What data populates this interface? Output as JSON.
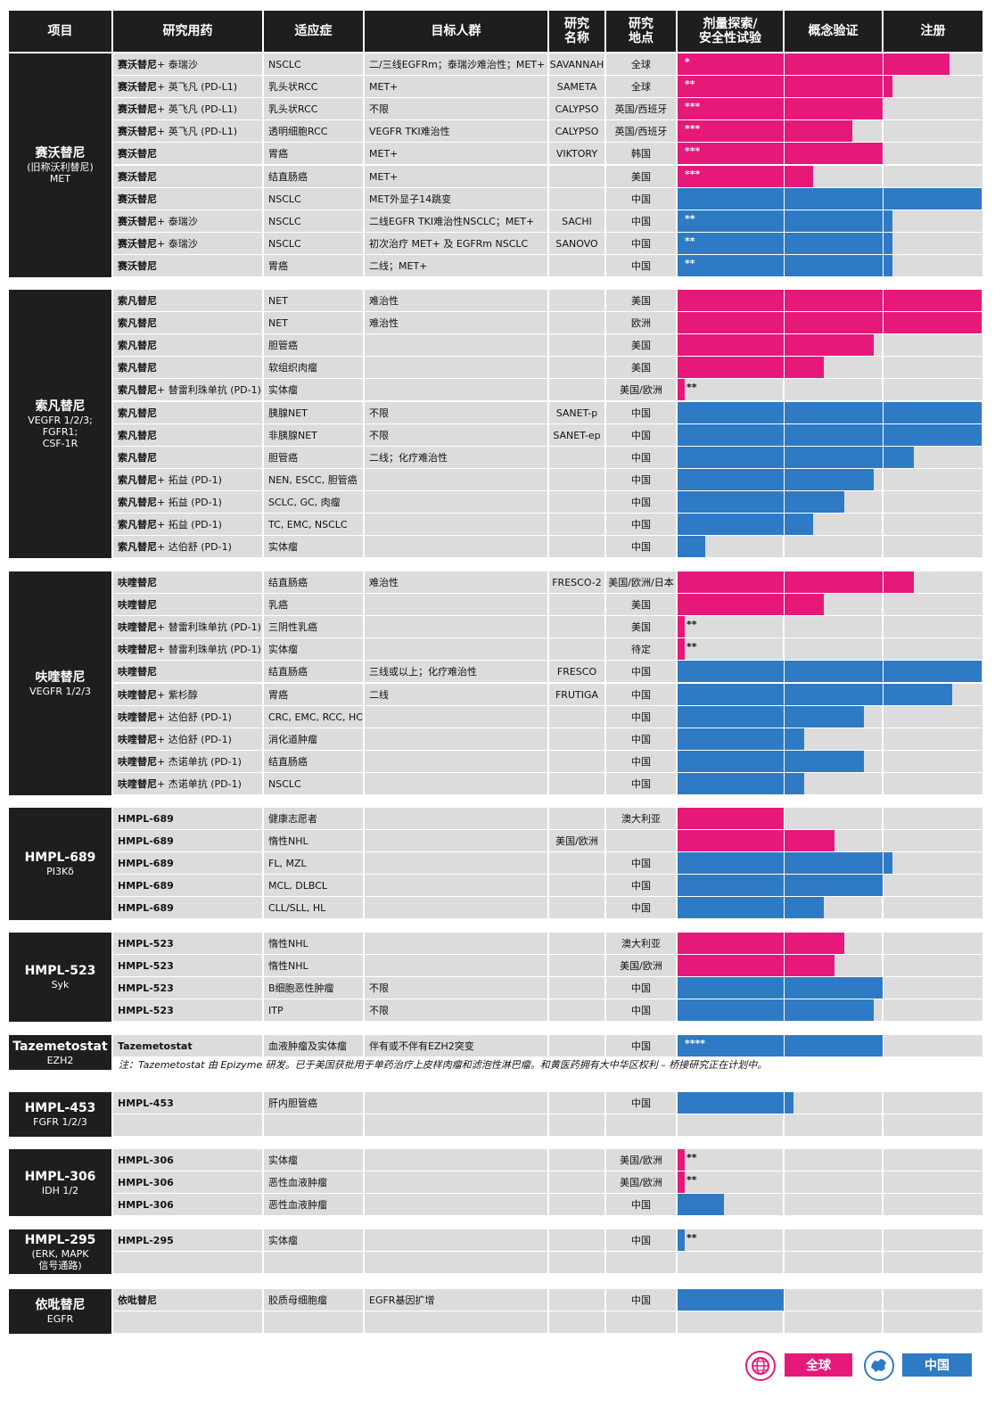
{
  "header": {
    "columns": [
      "项目",
      "研究用药",
      "适应症",
      "目标人群",
      "研究\n名称",
      "研究\n地点",
      "剂量探索/\n安全性试验",
      "概念验证",
      "注册"
    ]
  },
  "legend": {
    "global": "全球",
    "china": "中国",
    "global_color": "#e6197a",
    "china_color": "#2f7ac4",
    "global_icon": "globe-icon",
    "china_icon": "china-map-icon"
  },
  "groups": [
    {
      "name": "赛沃替尼",
      "target": "(旧称沃利替尼)\nMET",
      "rows": [
        {
          "drug": "赛沃替尼",
          "combo": " + 泰瑞沙",
          "ind": "NSCLC",
          "pop": "二/三线EGFRm；泰瑞沙难治性；MET+",
          "study": "SAVANNAH",
          "loc": "全球",
          "region": "global",
          "progress": 0.894,
          "stars": "*"
        },
        {
          "drug": "赛沃替尼",
          "combo": " + 英飞凡 (PD-L1)",
          "ind": "乳头状RCC",
          "pop": "MET+",
          "study": "SAMETA",
          "loc": "全球",
          "region": "global",
          "progress": 0.706,
          "stars": "**"
        },
        {
          "drug": "赛沃替尼",
          "combo": " + 英飞凡 (PD-L1)",
          "ind": "乳头状RCC",
          "pop": "不限",
          "study": "CALYPSO",
          "loc": "英国/西班牙",
          "region": "global",
          "progress": 0.676,
          "stars": "***"
        },
        {
          "drug": "赛沃替尼",
          "combo": " + 英飞凡 (PD-L1)",
          "ind": "透明细胞RCC",
          "pop": "VEGFR TKI难治性",
          "study": "CALYPSO",
          "loc": "英国/西班牙",
          "region": "global",
          "progress": 0.576,
          "stars": "***"
        },
        {
          "drug": "赛沃替尼",
          "combo": "",
          "ind": "胃癌",
          "pop": "MET+",
          "study": "VIKTORY",
          "loc": "韩国",
          "region": "global",
          "progress": 0.676,
          "stars": "***"
        },
        {
          "drug": "赛沃替尼",
          "combo": "",
          "ind": "结直肠癌",
          "pop": "MET+",
          "study": "",
          "loc": "美国",
          "region": "global",
          "progress": 0.447,
          "stars": "***"
        },
        {
          "drug": "赛沃替尼",
          "combo": "",
          "ind": "NSCLC",
          "pop": "MET外显子14跳变",
          "study": "",
          "loc": "中国",
          "region": "china",
          "progress": 1.0,
          "stars": ""
        },
        {
          "drug": "赛沃替尼",
          "combo": " + 泰瑞沙",
          "ind": "NSCLC",
          "pop": "二线EGFR TKI难治性NSCLC；MET+",
          "study": "SACHI",
          "loc": "中国",
          "region": "china",
          "progress": 0.706,
          "stars": "**"
        },
        {
          "drug": "赛沃替尼",
          "combo": " + 泰瑞沙",
          "ind": "NSCLC",
          "pop": "初次治疗 MET+ 及 EGFRm NSCLC",
          "study": "SANOVO",
          "loc": "中国",
          "region": "china",
          "progress": 0.706,
          "stars": "**"
        },
        {
          "drug": "赛沃替尼",
          "combo": "",
          "ind": "胃癌",
          "pop": "二线；MET+",
          "study": "",
          "loc": "中国",
          "region": "china",
          "progress": 0.706,
          "stars": "**"
        }
      ]
    },
    {
      "name": "索凡替尼",
      "target": "VEGFR 1/2/3;\nFGFR1;\nCSF-1R",
      "rows": [
        {
          "drug": "索凡替尼",
          "combo": "",
          "ind": "NET",
          "pop": "难治性",
          "study": "",
          "loc": "美国",
          "region": "global",
          "progress": 1.0,
          "stars": ""
        },
        {
          "drug": "索凡替尼",
          "combo": "",
          "ind": "NET",
          "pop": "难治性",
          "study": "",
          "loc": "欧洲",
          "region": "global",
          "progress": 1.0,
          "stars": ""
        },
        {
          "drug": "索凡替尼",
          "combo": "",
          "ind": "胆管癌",
          "pop": "",
          "study": "",
          "loc": "美国",
          "region": "global",
          "progress": 0.644,
          "stars": ""
        },
        {
          "drug": "索凡替尼",
          "combo": "",
          "ind": "软组织肉瘤",
          "pop": "",
          "study": "",
          "loc": "美国",
          "region": "global",
          "progress": 0.482,
          "stars": ""
        },
        {
          "drug": "索凡替尼",
          "combo": " + 替雷利珠单抗 (PD-1)",
          "ind": "实体瘤",
          "pop": "",
          "study": "",
          "loc": "美国/欧洲",
          "region": "global",
          "progress": 0.024,
          "stars": "**"
        },
        {
          "drug": "索凡替尼",
          "combo": "",
          "ind": "胰腺NET",
          "pop": "不限",
          "study": "SANET-p",
          "loc": "中国",
          "region": "china",
          "progress": 1.0,
          "stars": ""
        },
        {
          "drug": "索凡替尼",
          "combo": "",
          "ind": "非胰腺NET",
          "pop": "不限",
          "study": "SANET-ep",
          "loc": "中国",
          "region": "china",
          "progress": 1.0,
          "stars": ""
        },
        {
          "drug": "索凡替尼",
          "combo": "",
          "ind": "胆管癌",
          "pop": "二线；化疗难治性",
          "study": "",
          "loc": "中国",
          "region": "china",
          "progress": 0.776,
          "stars": ""
        },
        {
          "drug": "索凡替尼",
          "combo": " + 拓益 (PD-1)",
          "ind": "NEN, ESCC, 胆管癌",
          "pop": "",
          "study": "",
          "loc": "中国",
          "region": "china",
          "progress": 0.644,
          "stars": ""
        },
        {
          "drug": "索凡替尼",
          "combo": " + 拓益 (PD-1)",
          "ind": "SCLC, GC, 肉瘤",
          "pop": "",
          "study": "",
          "loc": "中国",
          "region": "china",
          "progress": 0.547,
          "stars": ""
        },
        {
          "drug": "索凡替尼",
          "combo": " + 拓益 (PD-1)",
          "ind": "TC, EMC, NSCLC",
          "pop": "",
          "study": "",
          "loc": "中国",
          "region": "china",
          "progress": 0.447,
          "stars": ""
        },
        {
          "drug": "索凡替尼",
          "combo": " + 达伯舒 (PD-1)",
          "ind": "实体瘤",
          "pop": "",
          "study": "",
          "loc": "中国",
          "region": "china",
          "progress": 0.091,
          "stars": ""
        }
      ]
    },
    {
      "name": "呋喹替尼",
      "target": "VEGFR 1/2/3",
      "rows": [
        {
          "drug": "呋喹替尼",
          "combo": "",
          "ind": "结直肠癌",
          "pop": "难治性",
          "study": "FRESCO-2",
          "loc": "美国/欧洲/日本",
          "region": "global",
          "progress": 0.776,
          "stars": ""
        },
        {
          "drug": "呋喹替尼",
          "combo": "",
          "ind": "乳癌",
          "pop": "",
          "study": "",
          "loc": "美国",
          "region": "global",
          "progress": 0.482,
          "stars": ""
        },
        {
          "drug": "呋喹替尼",
          "combo": " + 替雷利珠单抗 (PD-1)",
          "ind": "三阴性乳癌",
          "pop": "",
          "study": "",
          "loc": "美国",
          "region": "global",
          "progress": 0.024,
          "stars": "**"
        },
        {
          "drug": "呋喹替尼",
          "combo": " + 替雷利珠单抗 (PD-1)",
          "ind": "实体瘤",
          "pop": "",
          "study": "",
          "loc": "待定",
          "region": "global",
          "progress": 0.024,
          "stars": "**"
        },
        {
          "drug": "呋喹替尼",
          "combo": "",
          "ind": "结直肠癌",
          "pop": "三线或以上；化疗难治性",
          "study": "FRESCO",
          "loc": "中国",
          "region": "china",
          "progress": 1.0,
          "stars": ""
        },
        {
          "drug": "呋喹替尼",
          "combo": " + 紫杉醇",
          "ind": "胃癌",
          "pop": "二线",
          "study": "FRUTIGA",
          "loc": "中国",
          "region": "china",
          "progress": 0.903,
          "stars": ""
        },
        {
          "drug": "呋喹替尼",
          "combo": " + 达伯舒 (PD-1)",
          "ind": "CRC, EMC, RCC, HCC",
          "pop": "",
          "study": "",
          "loc": "中国",
          "region": "china",
          "progress": 0.612,
          "stars": ""
        },
        {
          "drug": "呋喹替尼",
          "combo": " + 达伯舒 (PD-1)",
          "ind": "消化道肿瘤",
          "pop": "",
          "study": "",
          "loc": "中国",
          "region": "china",
          "progress": 0.415,
          "stars": ""
        },
        {
          "drug": "呋喹替尼",
          "combo": " + 杰诺单抗 (PD-1)",
          "ind": "结直肠癌",
          "pop": "",
          "study": "",
          "loc": "中国",
          "region": "china",
          "progress": 0.612,
          "stars": ""
        },
        {
          "drug": "呋喹替尼",
          "combo": " + 杰诺单抗 (PD-1)",
          "ind": "NSCLC",
          "pop": "",
          "study": "",
          "loc": "中国",
          "region": "china",
          "progress": 0.415,
          "stars": ""
        }
      ]
    },
    {
      "name": "HMPL-689",
      "target": "PI3Kδ",
      "rows": [
        {
          "drug": "HMPL-689",
          "combo": "",
          "ind": "健康志愿者",
          "pop": "",
          "study": "",
          "loc": "澳大利亚",
          "region": "global",
          "progress": 0.35,
          "stars": ""
        },
        {
          "drug": "HMPL-689",
          "combo": "",
          "ind": "惰性NHL",
          "pop": "",
          "study": "美国/欧洲",
          "loc": "",
          "region": "global",
          "progress": 0.515,
          "stars": ""
        },
        {
          "drug": "HMPL-689",
          "combo": "",
          "ind": "FL, MZL",
          "pop": "",
          "study": "",
          "loc": "中国",
          "region": "china",
          "progress": 0.706,
          "stars": ""
        },
        {
          "drug": "HMPL-689",
          "combo": "",
          "ind": "MCL, DLBCL",
          "pop": "",
          "study": "",
          "loc": "中国",
          "region": "china",
          "progress": 0.676,
          "stars": ""
        },
        {
          "drug": "HMPL-689",
          "combo": "",
          "ind": "CLL/SLL, HL",
          "pop": "",
          "study": "",
          "loc": "中国",
          "region": "china",
          "progress": 0.482,
          "stars": ""
        }
      ]
    },
    {
      "name": "HMPL-523",
      "target": "Syk",
      "rows": [
        {
          "drug": "HMPL-523",
          "combo": "",
          "ind": "惰性NHL",
          "pop": "",
          "study": "",
          "loc": "澳大利亚",
          "region": "global",
          "progress": 0.547,
          "stars": ""
        },
        {
          "drug": "HMPL-523",
          "combo": "",
          "ind": "惰性NHL",
          "pop": "",
          "study": "",
          "loc": "美国/欧洲",
          "region": "global",
          "progress": 0.515,
          "stars": ""
        },
        {
          "drug": "HMPL-523",
          "combo": "",
          "ind": "B细胞恶性肿瘤",
          "pop": "不限",
          "study": "",
          "loc": "中国",
          "region": "china",
          "progress": 0.676,
          "stars": ""
        },
        {
          "drug": "HMPL-523",
          "combo": "",
          "ind": "ITP",
          "pop": "不限",
          "study": "",
          "loc": "中国",
          "region": "china",
          "progress": 0.644,
          "stars": ""
        }
      ]
    },
    {
      "name": "Tazemetostat",
      "target": "EZH2",
      "rows": [
        {
          "drug": "Tazemetostat",
          "combo": "",
          "ind": "血液肿瘤及实体瘤",
          "pop": "伴有或不伴有EZH2突变",
          "study": "",
          "loc": "中国",
          "region": "china",
          "progress": 0.676,
          "stars": "****"
        }
      ],
      "note": "注：Tazemetostat 由 Epizyme 研发。已于美国获批用于单药治疗上皮样肉瘤和滤泡性淋巴瘤。和黄医药拥有大中华区权利 – 桥接研究正在计划中。"
    },
    {
      "name": "HMPL-453",
      "target": "FGFR 1/2/3",
      "rows": [
        {
          "drug": "HMPL-453",
          "combo": "",
          "ind": "肝内胆管癌",
          "pop": "",
          "study": "",
          "loc": "中国",
          "region": "china",
          "progress": 0.382,
          "stars": ""
        },
        {
          "drug": "",
          "combo": "",
          "ind": "",
          "pop": "",
          "study": "",
          "loc": "",
          "region": "",
          "progress": 0,
          "stars": ""
        }
      ]
    },
    {
      "name": "HMPL-306",
      "target": "IDH 1/2",
      "rows": [
        {
          "drug": "HMPL-306",
          "combo": "",
          "ind": "实体瘤",
          "pop": "",
          "study": "",
          "loc": "美国/欧洲",
          "region": "global",
          "progress": 0.024,
          "stars": "**"
        },
        {
          "drug": "HMPL-306",
          "combo": "",
          "ind": "恶性血液肿瘤",
          "pop": "",
          "study": "",
          "loc": "美国/欧洲",
          "region": "global",
          "progress": 0.024,
          "stars": "**"
        },
        {
          "drug": "HMPL-306",
          "combo": "",
          "ind": "恶性血液肿瘤",
          "pop": "",
          "study": "",
          "loc": "中国",
          "region": "china",
          "progress": 0.153,
          "stars": ""
        }
      ]
    },
    {
      "name": "HMPL-295",
      "target": "(ERK, MAPK\n信号通路)",
      "rows": [
        {
          "drug": "HMPL-295",
          "combo": "",
          "ind": "实体瘤",
          "pop": "",
          "study": "",
          "loc": "中国",
          "region": "china",
          "progress": 0.024,
          "stars": "**"
        },
        {
          "drug": "",
          "combo": "",
          "ind": "",
          "pop": "",
          "study": "",
          "loc": "",
          "region": "",
          "progress": 0,
          "stars": ""
        }
      ]
    },
    {
      "name": "依吡替尼",
      "target": "EGFR",
      "rows": [
        {
          "drug": "依吡替尼",
          "combo": "",
          "ind": "胶质母细胞瘤",
          "pop": "EGFR基因扩增",
          "study": "",
          "loc": "中国",
          "region": "china",
          "progress": 0.35,
          "stars": ""
        },
        {
          "drug": "",
          "combo": "",
          "ind": "",
          "pop": "",
          "study": "",
          "loc": "",
          "region": "",
          "progress": 0,
          "stars": ""
        }
      ]
    }
  ]
}
